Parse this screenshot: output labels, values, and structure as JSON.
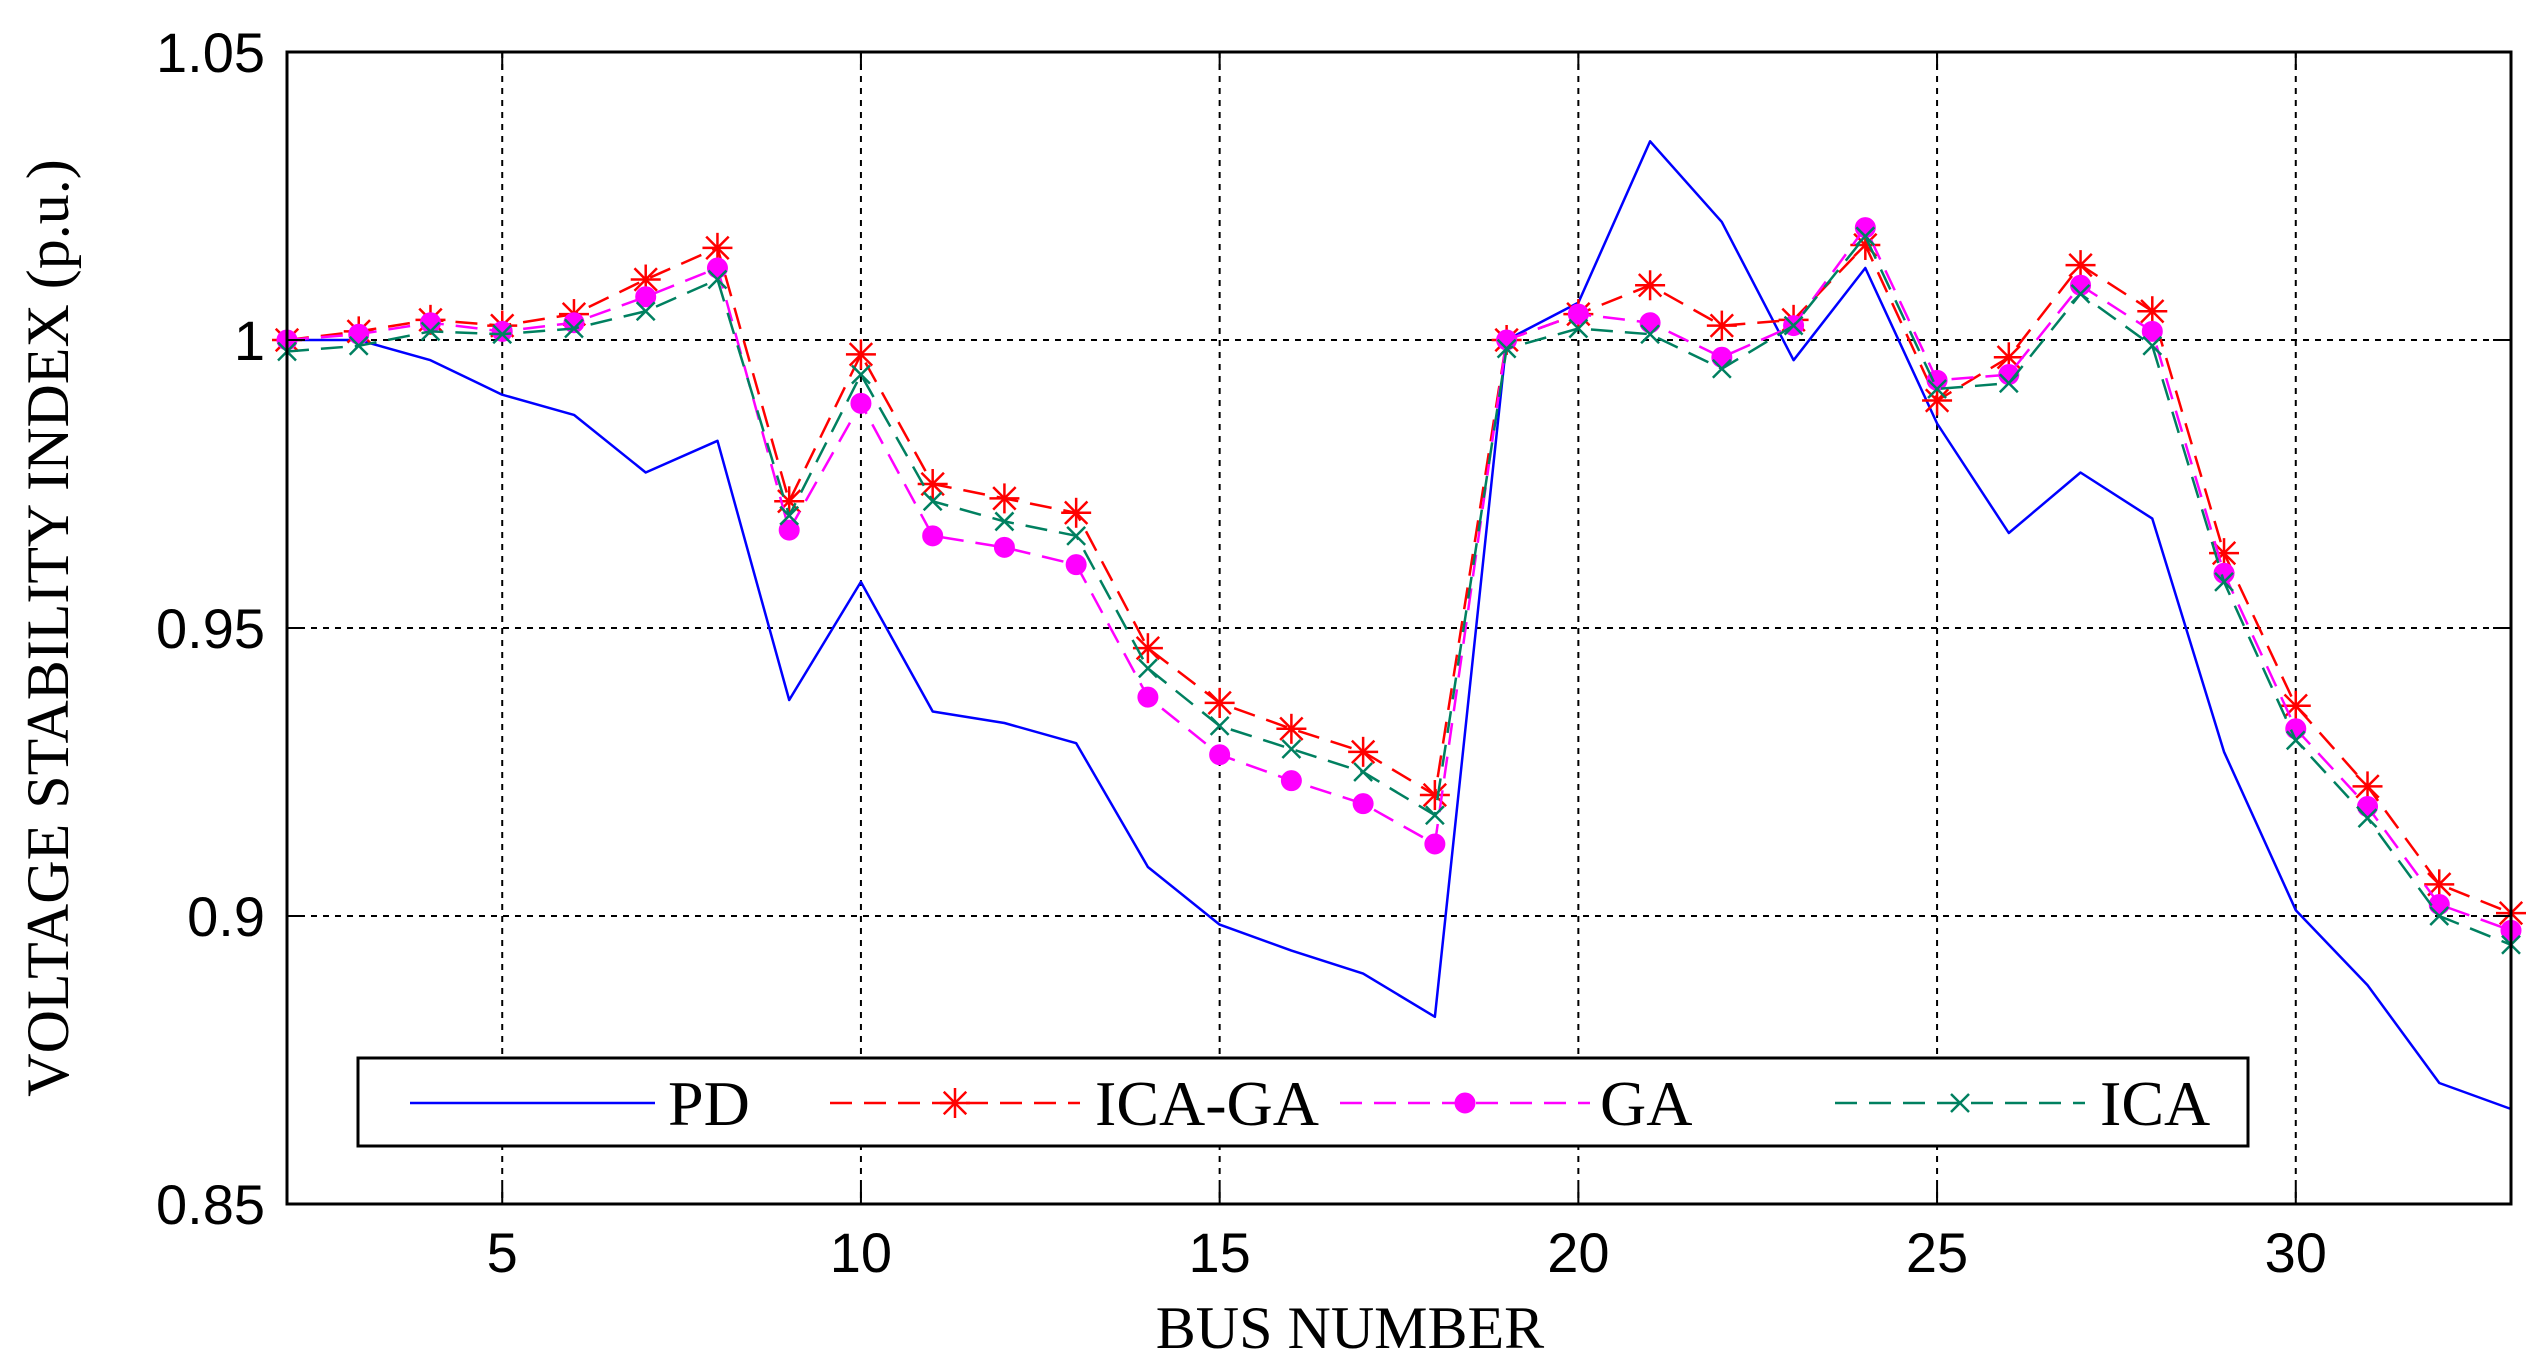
{
  "chart_data": {
    "type": "line",
    "title": "",
    "xlabel": "BUS NUMBER",
    "ylabel": "VOLTAGE STABILITY INDEX (p.u.)",
    "xlim": [
      2,
      33
    ],
    "ylim": [
      0.85,
      1.05
    ],
    "xticks": [
      5,
      10,
      15,
      20,
      25,
      30
    ],
    "yticks": [
      0.85,
      0.9,
      0.95,
      1,
      1.05
    ],
    "xtick_labels": [
      "5",
      "10",
      "15",
      "20",
      "25",
      "30"
    ],
    "ytick_labels": [
      "0.85",
      "0.9",
      "0.95",
      "1",
      "1.05"
    ],
    "grid": true,
    "legend_position": "bottom",
    "x": [
      2,
      3,
      4,
      5,
      6,
      7,
      8,
      9,
      10,
      11,
      12,
      13,
      14,
      15,
      16,
      17,
      18,
      19,
      20,
      21,
      22,
      23,
      24,
      25,
      26,
      27,
      28,
      29,
      30,
      31,
      32,
      33
    ],
    "series": [
      {
        "name": "PD",
        "color": "#0000ff",
        "dash": "solid",
        "marker": "none",
        "values": [
          1.0,
          1.0,
          0.9965,
          0.9905,
          0.987,
          0.977,
          0.9825,
          0.9375,
          0.958,
          0.9355,
          0.9335,
          0.93,
          0.9085,
          0.8985,
          0.894,
          0.89,
          0.8825,
          1.0,
          1.0065,
          1.0345,
          1.0205,
          0.9965,
          1.0125,
          0.9855,
          0.9665,
          0.977,
          0.969,
          0.9285,
          0.901,
          0.888,
          0.871,
          0.8665
        ]
      },
      {
        "name": "ICA-GA",
        "color": "#ff0000",
        "dash": "dashed",
        "marker": "star",
        "values": [
          1.0,
          1.0015,
          1.0035,
          1.0025,
          1.0045,
          1.0105,
          1.016,
          0.972,
          0.9975,
          0.975,
          0.9725,
          0.97,
          0.9465,
          0.937,
          0.9325,
          0.9285,
          0.921,
          1.0,
          1.0045,
          1.0095,
          1.0025,
          1.0035,
          1.0165,
          0.9895,
          0.997,
          1.013,
          1.005,
          0.963,
          0.9365,
          0.9225,
          0.9055,
          0.9005
        ]
      },
      {
        "name": "GA",
        "color": "#ff00ff",
        "dash": "dashed",
        "marker": "dot",
        "values": [
          1.0,
          1.001,
          1.003,
          1.0015,
          1.003,
          1.0075,
          1.0125,
          0.967,
          0.989,
          0.966,
          0.964,
          0.961,
          0.938,
          0.928,
          0.9235,
          0.9195,
          0.9125,
          1.0,
          1.0045,
          1.003,
          0.997,
          1.0025,
          1.0195,
          0.993,
          0.994,
          1.0095,
          1.0015,
          0.9595,
          0.9325,
          0.919,
          0.902,
          0.8975
        ]
      },
      {
        "name": "ICA",
        "color": "#008060",
        "dash": "dashed",
        "marker": "x",
        "values": [
          0.998,
          0.999,
          1.0015,
          1.001,
          1.002,
          1.005,
          1.0105,
          0.9695,
          0.994,
          0.972,
          0.9685,
          0.966,
          0.943,
          0.933,
          0.929,
          0.925,
          0.9175,
          0.9985,
          1.002,
          1.001,
          0.995,
          1.0025,
          1.018,
          0.9915,
          0.9925,
          1.008,
          0.999,
          0.958,
          0.9305,
          0.917,
          0.9,
          0.895
        ]
      }
    ]
  }
}
